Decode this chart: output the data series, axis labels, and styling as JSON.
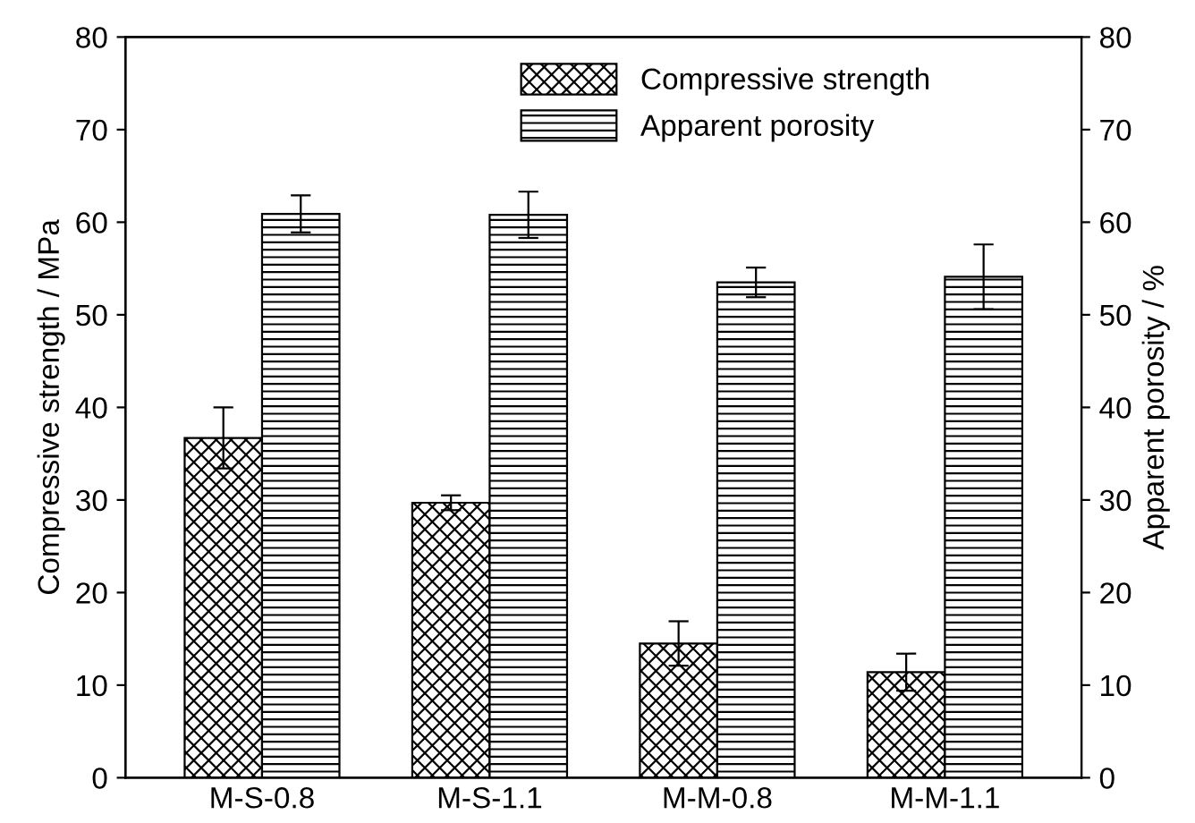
{
  "chart_data": {
    "type": "bar",
    "categories": [
      "M-S-0.8",
      "M-S-1.1",
      "M-M-0.8",
      "M-M-1.1"
    ],
    "series": [
      {
        "name": "Compressive strength",
        "color": "#000000",
        "values": [
          36.7,
          29.7,
          14.5,
          11.4
        ],
        "errors": [
          3.3,
          0.8,
          2.4,
          2.0
        ]
      },
      {
        "name": "Apparent porosity",
        "color": "#000000",
        "axis": "y2",
        "values": [
          60.9,
          60.8,
          53.5,
          54.1
        ],
        "errors": [
          2.0,
          2.5,
          1.6,
          3.5
        ]
      }
    ],
    "ylabel": "Compressive strength / MPa",
    "y2label": "Apparent porosity / %",
    "ylim": [
      0,
      80
    ],
    "yticks": [
      0,
      10,
      20,
      30,
      40,
      50,
      60,
      70,
      80
    ],
    "y2lim": [
      0,
      80
    ],
    "y2ticks": [
      0,
      10,
      20,
      30,
      40,
      50,
      60,
      70,
      80
    ],
    "legend": "top right",
    "grid": false
  }
}
